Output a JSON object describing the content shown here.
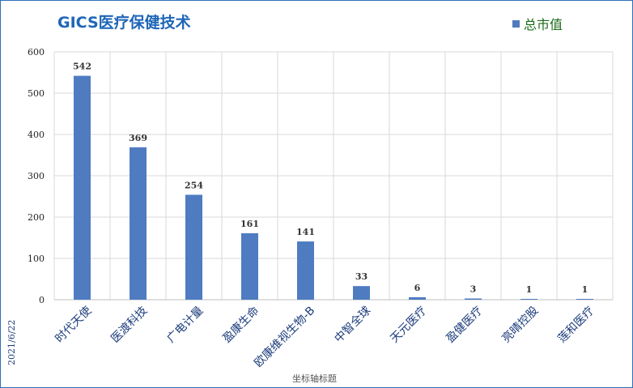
{
  "chart_data": {
    "type": "bar",
    "title": "GICS医疗保健技术",
    "categories": [
      "时代天使",
      "医渡科技",
      "广电计量",
      "盈康生命",
      "欧康维视生物-B",
      "中智全球",
      "天元医疗",
      "盈健医疗",
      "亮晴控股",
      "莲和医疗"
    ],
    "series": [
      {
        "name": "总市值",
        "values": [
          542,
          369,
          254,
          161,
          141,
          33,
          6,
          3,
          1,
          1
        ]
      }
    ],
    "data_labels": [
      "542",
      "369",
      "254",
      "161",
      "141",
      "33",
      "6",
      "3",
      "1",
      "1"
    ],
    "yticks": [
      "0",
      "100",
      "200",
      "300",
      "400",
      "500",
      "600"
    ],
    "ylim": [
      0,
      600
    ],
    "xlabel": "坐标轴标题",
    "ylabel": "",
    "side_label": "2021/6/22",
    "legend_position": "top-right",
    "grid": true,
    "colors": {
      "bar": "#4f7cc1",
      "title": "#1f66b7",
      "grid": "#d9d9d9",
      "border": "#2e6fba"
    }
  }
}
